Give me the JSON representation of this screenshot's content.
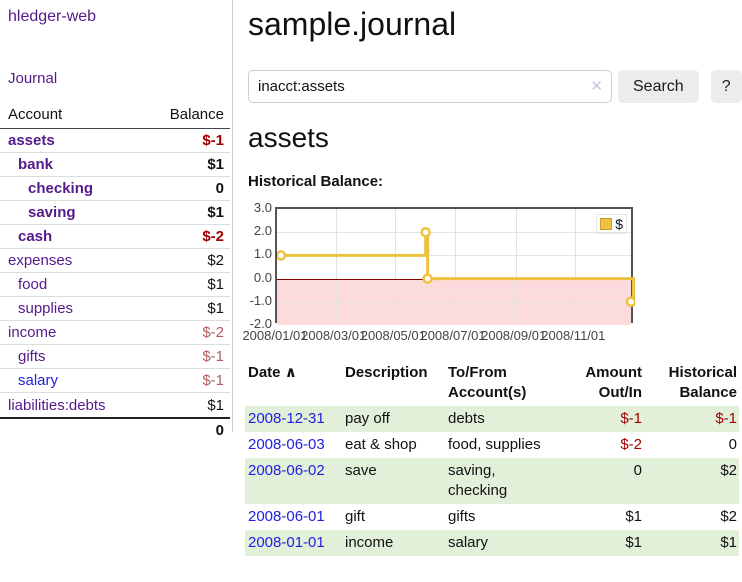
{
  "app": {
    "brand": "hledger-web",
    "nav_journal": "Journal"
  },
  "sidebar": {
    "col_account": "Account",
    "col_balance": "Balance",
    "accounts": [
      {
        "name": "assets",
        "indent": 1,
        "balance": "$-1",
        "bold": true,
        "neg": "dark"
      },
      {
        "name": "bank",
        "indent": 2,
        "balance": "$1",
        "bold": true,
        "neg": "none"
      },
      {
        "name": "checking",
        "indent": 3,
        "balance": "0",
        "bold": true,
        "neg": "none"
      },
      {
        "name": "saving",
        "indent": 3,
        "balance": "$1",
        "bold": true,
        "neg": "none"
      },
      {
        "name": "cash",
        "indent": 2,
        "balance": "$-2",
        "bold": true,
        "neg": "dark"
      },
      {
        "name": "expenses",
        "indent": 1,
        "balance": "$2",
        "bold": false,
        "neg": "none"
      },
      {
        "name": "food",
        "indent": 2,
        "balance": "$1",
        "bold": false,
        "neg": "none"
      },
      {
        "name": "supplies",
        "indent": 2,
        "balance": "$1",
        "bold": false,
        "neg": "none"
      },
      {
        "name": "income",
        "indent": 1,
        "balance": "$-2",
        "bold": false,
        "neg": "light"
      },
      {
        "name": "gifts",
        "indent": 2,
        "balance": "$-1",
        "bold": false,
        "neg": "light"
      },
      {
        "name": "salary",
        "indent": 2,
        "balance": "$-1",
        "bold": false,
        "neg": "light",
        "link": "blue"
      },
      {
        "name": "liabilities:debts",
        "indent": 1,
        "balance": "$1",
        "bold": false,
        "neg": "none"
      }
    ],
    "total": "0"
  },
  "main": {
    "title": "sample.journal",
    "search": {
      "value": "inacct:assets",
      "clear_icon": "✕",
      "button_label": "Search",
      "help_label": "?"
    },
    "account_heading": "assets",
    "chart_heading": "Historical Balance:"
  },
  "chart_data": {
    "type": "line",
    "title": "Historical Balance:",
    "step": true,
    "series": [
      {
        "name": "$",
        "color": "#edc240",
        "points": [
          [
            "2008-01-01",
            1
          ],
          [
            "2008-06-01",
            2
          ],
          [
            "2008-06-03",
            0
          ],
          [
            "2008-12-31",
            -1
          ]
        ]
      }
    ],
    "x_range": [
      "2008-01-01",
      "2009-01-01"
    ],
    "x_ticks": [
      "2008/01/01",
      "2008/03/01",
      "2008/05/01",
      "2008/07/01",
      "2008/09/01",
      "2008/11/01"
    ],
    "y_ticks": [
      "3.0",
      "2.0",
      "1.0",
      "0.0",
      "-1.0",
      "-2.0"
    ],
    "ylim": [
      -2,
      3
    ],
    "grid": true,
    "legend_position": "top-right",
    "negative_region_color": "#fbdbdb",
    "zero_line_color": "#8b0000"
  },
  "register": {
    "headers": {
      "date": "Date",
      "sort_icon": "∧",
      "description": "Description",
      "accounts_line1": "To/From",
      "accounts_line2": "Account(s)",
      "amount_line1": "Amount",
      "amount_line2": "Out/In",
      "balance_line1": "Historical",
      "balance_line2": "Balance"
    },
    "rows": [
      {
        "date": "2008-12-31",
        "description": "pay off",
        "accounts": "debts",
        "amount": "$-1",
        "balance": "$-1",
        "amount_neg": true,
        "balance_neg": true
      },
      {
        "date": "2008-06-03",
        "description": "eat & shop",
        "accounts": "food, supplies",
        "amount": "$-2",
        "balance": "0",
        "amount_neg": true,
        "balance_neg": false
      },
      {
        "date": "2008-06-02",
        "description": "save",
        "accounts": "saving, checking",
        "amount": "0",
        "balance": "$2",
        "amount_neg": false,
        "balance_neg": false
      },
      {
        "date": "2008-06-01",
        "description": "gift",
        "accounts": "gifts",
        "amount": "$1",
        "balance": "$2",
        "amount_neg": false,
        "balance_neg": false
      },
      {
        "date": "2008-01-01",
        "description": "income",
        "accounts": "salary",
        "amount": "$1",
        "balance": "$1",
        "amount_neg": false,
        "balance_neg": false
      }
    ]
  }
}
